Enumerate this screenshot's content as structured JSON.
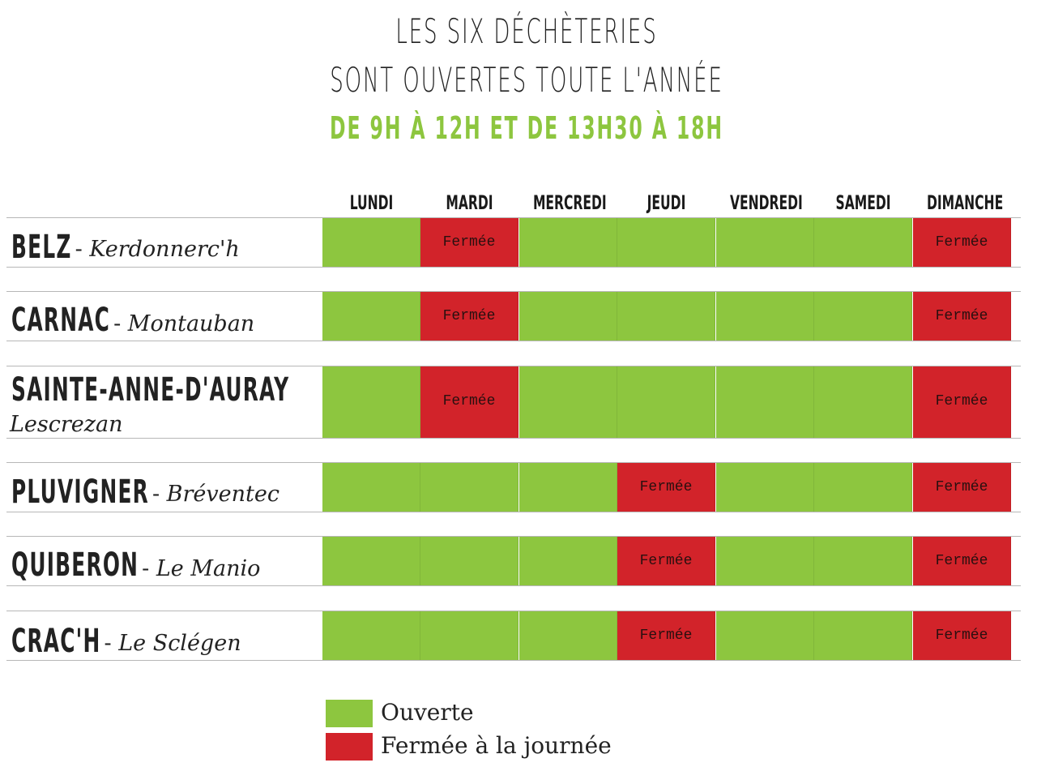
{
  "header": {
    "title_line1": "LES SIX DÉCHÈTERIES",
    "title_line2": "SONT OUVERTES TOUTE L'ANNÉE",
    "hours": "DE 9H À 12H ET DE 13H30 À 18H"
  },
  "days": [
    "LUNDI",
    "MARDI",
    "MERCREDI",
    "JEUDI",
    "VENDREDI",
    "SAMEDI",
    "DIMANCHE"
  ],
  "closed_label": "Fermée",
  "sites": [
    {
      "name": "BELZ",
      "location": "Kerdonnerc'h",
      "separator": "-",
      "closed": [
        false,
        true,
        false,
        false,
        false,
        false,
        true
      ]
    },
    {
      "name": "CARNAC",
      "location": "Montauban",
      "separator": "-",
      "closed": [
        false,
        true,
        false,
        false,
        false,
        false,
        true
      ]
    },
    {
      "name": "SAINTE-ANNE-D'AURAY",
      "location": "Lescrezan",
      "separator": "",
      "closed": [
        false,
        true,
        false,
        false,
        false,
        false,
        true
      ]
    },
    {
      "name": "PLUVIGNER",
      "location": "Bréventec",
      "separator": "-",
      "closed": [
        false,
        false,
        false,
        true,
        false,
        false,
        true
      ]
    },
    {
      "name": "QUIBERON",
      "location": "Le Manio",
      "separator": "-",
      "closed": [
        false,
        false,
        false,
        true,
        false,
        false,
        true
      ]
    },
    {
      "name": "CRAC'H",
      "location": "Le Sclégen",
      "separator": "-",
      "closed": [
        false,
        false,
        false,
        true,
        false,
        false,
        true
      ]
    }
  ],
  "legend": {
    "open_label": "Ouverte",
    "closed_label": "Fermée à la journée",
    "open_color": "#8dc63f",
    "closed_color": "#d2232a"
  }
}
